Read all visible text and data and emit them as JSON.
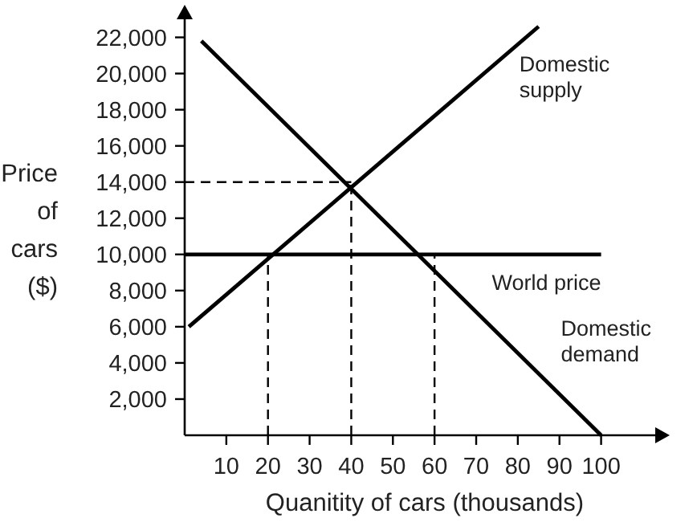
{
  "chart_data": {
    "type": "line",
    "xlabel": "Quanitity of cars (thousands)",
    "ylabel": "Price of cars ($)",
    "xlim": [
      0,
      113
    ],
    "ylim": [
      0,
      23000
    ],
    "xticks": [
      10,
      20,
      30,
      40,
      50,
      60,
      70,
      80,
      90,
      100
    ],
    "yticks": [
      {
        "value": 2000,
        "label": "2,000"
      },
      {
        "value": 4000,
        "label": "4,000"
      },
      {
        "value": 6000,
        "label": "6,000"
      },
      {
        "value": 8000,
        "label": "8,000"
      },
      {
        "value": 10000,
        "label": "10,000"
      },
      {
        "value": 12000,
        "label": "12,000"
      },
      {
        "value": 14000,
        "label": "14,000"
      },
      {
        "value": 16000,
        "label": "16,000"
      },
      {
        "value": 18000,
        "label": "18,000"
      },
      {
        "value": 20000,
        "label": "20,000"
      },
      {
        "value": 22000,
        "label": "22,000"
      }
    ],
    "grid": false,
    "legend": false,
    "marker": "none",
    "series": [
      {
        "name": "Domestic supply",
        "color": "#000000",
        "x": [
          1,
          85
        ],
        "values": [
          6000,
          22600
        ]
      },
      {
        "name": "Domestic demand",
        "color": "#000000",
        "x": [
          4,
          100
        ],
        "values": [
          21800,
          0
        ]
      },
      {
        "name": "World price",
        "color": "#000000",
        "x": [
          0,
          100
        ],
        "values": [
          10000,
          10000
        ]
      },
      {
        "color": "#000000",
        "line_style": "dashed",
        "x": [
          0,
          40
        ],
        "values": [
          14000,
          14000
        ]
      },
      {
        "color": "#000000",
        "line_style": "dashed",
        "x": [
          20,
          20
        ],
        "values": [
          0,
          10000
        ]
      },
      {
        "color": "#000000",
        "line_style": "dashed",
        "x": [
          40,
          40
        ],
        "values": [
          0,
          14000
        ]
      },
      {
        "color": "#000000",
        "line_style": "dashed",
        "x": [
          60,
          60
        ],
        "values": [
          0,
          10000
        ]
      }
    ]
  }
}
